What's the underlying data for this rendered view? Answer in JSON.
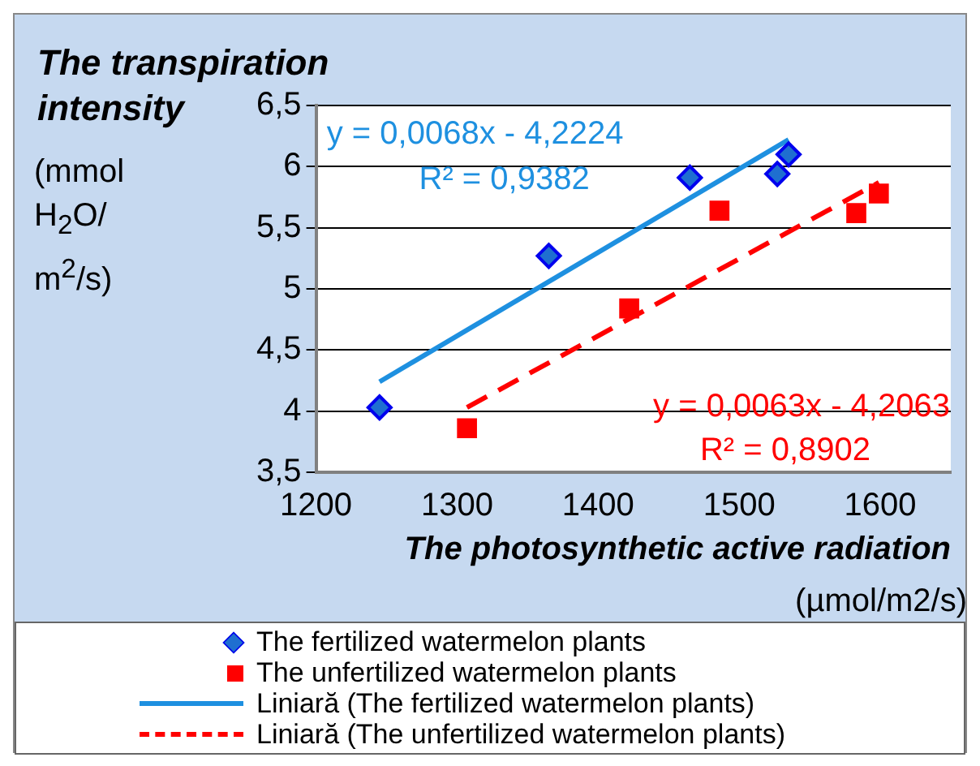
{
  "chart_data": {
    "type": "scatter",
    "title": "The transpiration intensity",
    "ylabel": "(mmol H$_{2}$O/ m$^{2}$/s)",
    "xlabel": "The photosynthetic active radiation",
    "annotations": [
      "y = 0,0068x - 4,2224",
      "R² = 0,9382",
      "y = 0,0063x - 4,2063",
      "R² = 0,8902",
      "(µmol/m2/s)"
    ],
    "series": [
      {
        "name": "The fertilized watermelon plants",
        "color": "#1f6fd0",
        "marker": "diamond",
        "x": [
          1245,
          1365,
          1465,
          1527,
          1535
        ],
        "values": [
          4.03,
          5.27,
          5.91,
          5.94,
          6.1
        ]
      },
      {
        "name": "The unfertilized watermelon plants",
        "color": "#ff0000",
        "marker": "square",
        "x": [
          1307,
          1422,
          1486,
          1583,
          1599
        ],
        "values": [
          3.86,
          4.84,
          5.64,
          5.62,
          5.78
        ]
      },
      {
        "name": "Liniară (The fertilized watermelon plants)",
        "type": "line",
        "color": "#1e90e0",
        "marker": "none",
        "line_style": "solid",
        "x": [
          1245,
          1535
        ],
        "values": [
          4.24,
          6.22
        ]
      },
      {
        "name": "Liniară (The unfertilized watermelon plants)",
        "type": "line",
        "color": "#ff0000",
        "marker": "none",
        "line_style": "dashed",
        "x": [
          1307,
          1599
        ],
        "values": [
          4.03,
          5.87
        ]
      }
    ],
    "xlim": [
      1200,
      1650
    ],
    "xticks": [
      1200,
      1300,
      1400,
      1500,
      1600
    ],
    "ylim": [
      3.5,
      6.5
    ],
    "yticks": [
      {
        "value": 3.5,
        "label": "3,5"
      },
      4,
      {
        "value": 4.5,
        "label": "4,5"
      },
      5,
      {
        "value": 5.5,
        "label": "5,5"
      },
      6,
      {
        "value": 6.5,
        "label": "6,5"
      }
    ],
    "grid": "y",
    "legend": "bottom"
  }
}
